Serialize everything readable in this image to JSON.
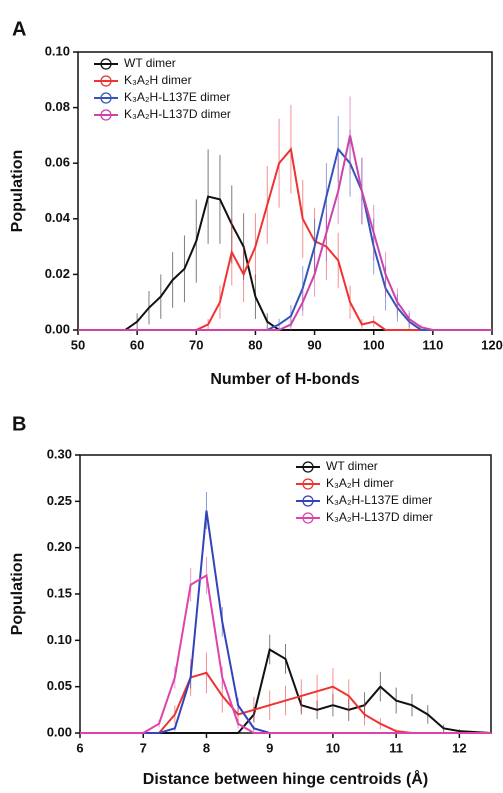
{
  "chart_data": [
    {
      "type": "line",
      "panel_label": "A",
      "x_label": "Number of H-bonds",
      "y_label": "Population",
      "xlim": [
        50,
        120
      ],
      "xticks": [
        50,
        60,
        70,
        80,
        90,
        100,
        110,
        120
      ],
      "ylim": [
        0,
        0.1
      ],
      "yticks": [
        {
          "value": 0,
          "label": "0.00"
        },
        {
          "value": 0.02,
          "label": "0.02"
        },
        {
          "value": 0.04,
          "label": "0.04"
        },
        {
          "value": 0.06,
          "label": "0.06"
        },
        {
          "value": 0.08,
          "label": "0.08"
        },
        {
          "value": 0.1,
          "label": "0.10"
        }
      ],
      "legend": "top-left",
      "series": [
        {
          "name": "WT dimer",
          "color": "#111111",
          "x": [
            50,
            58,
            60,
            62,
            64,
            66,
            68,
            70,
            72,
            74,
            76,
            78,
            80,
            82,
            84,
            120
          ],
          "values": [
            0,
            0,
            0.003,
            0.008,
            0.012,
            0.018,
            0.022,
            0.032,
            0.048,
            0.047,
            0.038,
            0.03,
            0.012,
            0.003,
            0,
            0
          ],
          "errors": [
            0,
            0,
            0.003,
            0.006,
            0.008,
            0.01,
            0.012,
            0.015,
            0.017,
            0.016,
            0.014,
            0.012,
            0.008,
            0.003,
            0,
            0
          ]
        },
        {
          "name": "K₃A₂H dimer",
          "color": "#ee3333",
          "x": [
            50,
            70,
            72,
            74,
            76,
            78,
            80,
            82,
            84,
            86,
            88,
            90,
            92,
            94,
            96,
            98,
            100,
            102,
            120
          ],
          "values": [
            0,
            0,
            0.002,
            0.01,
            0.028,
            0.02,
            0.03,
            0.045,
            0.06,
            0.065,
            0.04,
            0.032,
            0.03,
            0.025,
            0.01,
            0.002,
            0.003,
            0,
            0
          ],
          "errors": [
            0,
            0,
            0.002,
            0.006,
            0.012,
            0.01,
            0.012,
            0.014,
            0.016,
            0.016,
            0.014,
            0.012,
            0.012,
            0.01,
            0.006,
            0.002,
            0.002,
            0,
            0
          ]
        },
        {
          "name": "K₃A₂H-L137E dimer",
          "color": "#3355bb",
          "x": [
            50,
            82,
            84,
            86,
            88,
            90,
            92,
            94,
            96,
            98,
            100,
            102,
            104,
            106,
            108,
            120
          ],
          "values": [
            0,
            0,
            0.002,
            0.005,
            0.015,
            0.03,
            0.048,
            0.065,
            0.06,
            0.05,
            0.03,
            0.015,
            0.008,
            0.003,
            0,
            0
          ],
          "errors": [
            0,
            0,
            0.002,
            0.004,
            0.008,
            0.01,
            0.012,
            0.012,
            0.012,
            0.012,
            0.01,
            0.008,
            0.005,
            0.003,
            0,
            0
          ]
        },
        {
          "name": "K₃A₂H-L137D dimer",
          "color": "#cc44aa",
          "x": [
            50,
            84,
            86,
            88,
            90,
            92,
            94,
            96,
            98,
            100,
            102,
            104,
            106,
            108,
            110,
            120
          ],
          "values": [
            0,
            0,
            0.002,
            0.01,
            0.02,
            0.035,
            0.05,
            0.07,
            0.05,
            0.035,
            0.02,
            0.01,
            0.004,
            0.001,
            0,
            0
          ],
          "errors": [
            0,
            0,
            0.002,
            0.005,
            0.008,
            0.01,
            0.012,
            0.014,
            0.012,
            0.01,
            0.008,
            0.005,
            0.003,
            0.001,
            0,
            0
          ]
        }
      ]
    },
    {
      "type": "line",
      "panel_label": "B",
      "x_label": "Distance between hinge centroids (Å)",
      "y_label": "Population",
      "xlim": [
        6,
        12.5
      ],
      "xticks": [
        6,
        7,
        8,
        9,
        10,
        11,
        12
      ],
      "ylim": [
        0,
        0.3
      ],
      "yticks": [
        {
          "value": 0,
          "label": "0.00"
        },
        {
          "value": 0.05,
          "label": "0.05"
        },
        {
          "value": 0.1,
          "label": "0.10"
        },
        {
          "value": 0.15,
          "label": "0.15"
        },
        {
          "value": 0.2,
          "label": "0.20"
        },
        {
          "value": 0.25,
          "label": "0.25"
        },
        {
          "value": 0.3,
          "label": "0.30"
        }
      ],
      "legend": "top-right",
      "series": [
        {
          "name": "WT dimer",
          "color": "#111111",
          "x": [
            6,
            8.5,
            8.75,
            9,
            9.25,
            9.5,
            9.75,
            10,
            10.25,
            10.5,
            10.75,
            11,
            11.25,
            11.5,
            11.75,
            12,
            12.5
          ],
          "values": [
            0,
            0,
            0.02,
            0.09,
            0.08,
            0.03,
            0.025,
            0.03,
            0.025,
            0.03,
            0.05,
            0.035,
            0.03,
            0.02,
            0.005,
            0.002,
            0
          ],
          "errors": [
            0,
            0,
            0.008,
            0.016,
            0.016,
            0.01,
            0.01,
            0.012,
            0.012,
            0.014,
            0.016,
            0.014,
            0.012,
            0.01,
            0.004,
            0.002,
            0
          ]
        },
        {
          "name": "K₃A₂H dimer",
          "color": "#ee3333",
          "x": [
            6,
            7.25,
            7.5,
            7.75,
            8,
            8.25,
            8.5,
            8.75,
            9,
            9.25,
            9.5,
            9.75,
            10,
            10.25,
            10.5,
            10.75,
            11,
            11.25,
            12.5
          ],
          "values": [
            0,
            0,
            0.02,
            0.06,
            0.065,
            0.04,
            0.02,
            0.025,
            0.03,
            0.035,
            0.04,
            0.045,
            0.05,
            0.04,
            0.02,
            0.01,
            0.002,
            0,
            0
          ],
          "errors": [
            0,
            0,
            0.01,
            0.02,
            0.022,
            0.018,
            0.012,
            0.014,
            0.016,
            0.016,
            0.018,
            0.018,
            0.02,
            0.018,
            0.012,
            0.006,
            0.002,
            0,
            0
          ]
        },
        {
          "name": "K₃A₂H-L137E dimer",
          "color": "#3344bb",
          "x": [
            6,
            7.25,
            7.5,
            7.75,
            8,
            8.25,
            8.5,
            8.75,
            9,
            12.5
          ],
          "values": [
            0,
            0,
            0.005,
            0.06,
            0.24,
            0.12,
            0.03,
            0.005,
            0,
            0
          ],
          "errors": [
            0,
            0,
            0.003,
            0.012,
            0.02,
            0.016,
            0.008,
            0.003,
            0,
            0
          ]
        },
        {
          "name": "K₃A₂H-L137D dimer",
          "color": "#dd44aa",
          "x": [
            6,
            7,
            7.25,
            7.5,
            7.75,
            8,
            8.25,
            8.5,
            8.75,
            12.5
          ],
          "values": [
            0,
            0,
            0.01,
            0.06,
            0.16,
            0.17,
            0.06,
            0.01,
            0,
            0
          ],
          "errors": [
            0,
            0,
            0.004,
            0.012,
            0.018,
            0.02,
            0.012,
            0.005,
            0,
            0
          ]
        }
      ]
    }
  ]
}
